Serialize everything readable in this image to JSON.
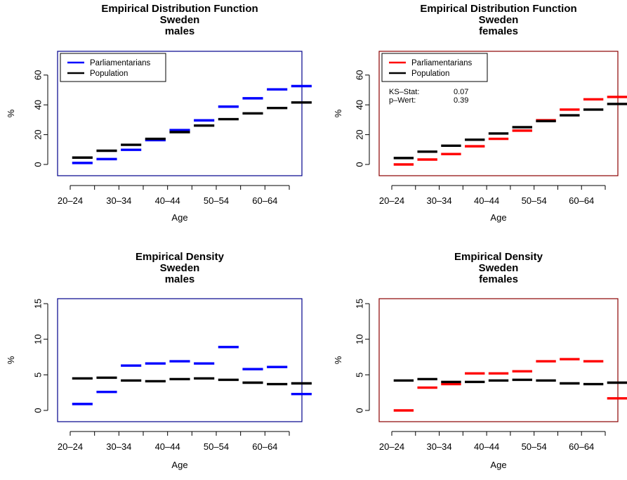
{
  "colors": {
    "males": "#0000ff",
    "females": "#ff0000",
    "population": "#000000",
    "frame_males": "#00008b",
    "frame_females": "#8b0000"
  },
  "chart_data": [
    {
      "type": "step",
      "title": [
        "Empirical Distribution Function",
        "Sweden",
        "males"
      ],
      "xlabel": "Age",
      "ylabel": "%",
      "categories": [
        "20–24",
        "25–29",
        "30–34",
        "35–39",
        "40–44",
        "45–49",
        "50–54",
        "55–59",
        "60–64",
        "65+"
      ],
      "tick_labels": [
        "20–24",
        "30–34",
        "40–44",
        "50–54",
        "60–64"
      ],
      "yticks": [
        0,
        20,
        40,
        60
      ],
      "ylim": [
        0,
        75
      ],
      "series": [
        {
          "name": "Parliamentarians",
          "color": "#0000ff",
          "values": [
            1.0,
            3.6,
            9.8,
            16.3,
            23.1,
            29.6,
            38.8,
            44.4,
            50.4,
            52.6
          ]
        },
        {
          "name": "Population",
          "color": "#000000",
          "values": [
            4.6,
            9.2,
            13.2,
            17.2,
            21.7,
            26.1,
            30.4,
            34.3,
            37.9,
            41.6
          ]
        }
      ],
      "legend": "top-left",
      "ks": null
    },
    {
      "type": "step",
      "title": [
        "Empirical Distribution Function",
        "Sweden",
        "females"
      ],
      "xlabel": "Age",
      "ylabel": "%",
      "categories": [
        "20–24",
        "25–29",
        "30–34",
        "35–39",
        "40–44",
        "45–49",
        "50–54",
        "55–59",
        "60–64",
        "65+"
      ],
      "tick_labels": [
        "20–24",
        "30–34",
        "40–44",
        "50–54",
        "60–64"
      ],
      "yticks": [
        0,
        20,
        40,
        60
      ],
      "ylim": [
        0,
        75
      ],
      "series": [
        {
          "name": "Parliamentarians",
          "color": "#ff0000",
          "values": [
            0.0,
            3.3,
            7.0,
            12.2,
            17.2,
            22.7,
            29.7,
            36.8,
            43.7,
            45.3
          ]
        },
        {
          "name": "Population",
          "color": "#000000",
          "values": [
            4.3,
            8.6,
            12.6,
            16.6,
            20.8,
            25.0,
            29.1,
            33.0,
            36.8,
            40.6
          ]
        }
      ],
      "legend": "top-left",
      "ks": {
        "labels": [
          "KS–Stat:",
          "p–Wert:"
        ],
        "values": [
          "0.07",
          "0.39"
        ]
      }
    },
    {
      "type": "step",
      "title": [
        "Empirical Density",
        "Sweden",
        "males"
      ],
      "xlabel": "Age",
      "ylabel": "%",
      "categories": [
        "20–24",
        "25–29",
        "30–34",
        "35–39",
        "40–44",
        "45–49",
        "50–54",
        "55–59",
        "60–64",
        "65+"
      ],
      "tick_labels": [
        "20–24",
        "30–34",
        "40–44",
        "50–54",
        "60–64"
      ],
      "yticks": [
        0,
        5,
        10,
        15
      ],
      "ylim": [
        0,
        15.5
      ],
      "series": [
        {
          "name": "Parliamentarians",
          "color": "#0000ff",
          "values": [
            0.9,
            2.6,
            6.3,
            6.6,
            6.9,
            6.6,
            8.9,
            5.8,
            6.1,
            2.3
          ]
        },
        {
          "name": "Population",
          "color": "#000000",
          "values": [
            4.5,
            4.6,
            4.2,
            4.1,
            4.4,
            4.5,
            4.3,
            3.9,
            3.7,
            3.8
          ]
        }
      ],
      "legend": null,
      "ks": null
    },
    {
      "type": "step",
      "title": [
        "Empirical Density",
        "Sweden",
        "females"
      ],
      "xlabel": "Age",
      "ylabel": "%",
      "categories": [
        "20–24",
        "25–29",
        "30–34",
        "35–39",
        "40–44",
        "45–49",
        "50–54",
        "55–59",
        "60–64",
        "65+"
      ],
      "tick_labels": [
        "20–24",
        "30–34",
        "40–44",
        "50–54",
        "60–64"
      ],
      "yticks": [
        0,
        5,
        10,
        15
      ],
      "ylim": [
        0,
        15.5
      ],
      "series": [
        {
          "name": "Parliamentarians",
          "color": "#ff0000",
          "values": [
            0.0,
            3.2,
            3.7,
            5.2,
            5.2,
            5.5,
            6.9,
            7.2,
            6.9,
            1.7
          ]
        },
        {
          "name": "Population",
          "color": "#000000",
          "values": [
            4.2,
            4.4,
            4.0,
            4.0,
            4.2,
            4.3,
            4.2,
            3.8,
            3.7,
            3.9
          ]
        }
      ],
      "legend": null,
      "ks": null
    }
  ]
}
